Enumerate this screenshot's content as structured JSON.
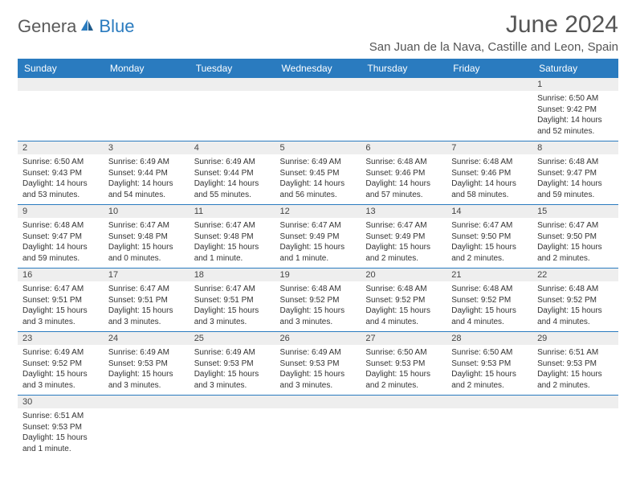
{
  "logo": {
    "part1": "Genera",
    "part2": "Blue"
  },
  "title": "June 2024",
  "location": "San Juan de la Nava, Castille and Leon, Spain",
  "columns": [
    "Sunday",
    "Monday",
    "Tuesday",
    "Wednesday",
    "Thursday",
    "Friday",
    "Saturday"
  ],
  "style": {
    "header_bg": "#2a7bbf",
    "header_fg": "#ffffff",
    "daynum_bg": "#eeeeee",
    "row_border": "#2a7bbf",
    "body_fontsize": 10,
    "header_fontsize": 12,
    "title_fontsize": 30,
    "location_fontsize": 15
  },
  "weeks": [
    [
      null,
      null,
      null,
      null,
      null,
      null,
      {
        "n": "1",
        "sr": "Sunrise: 6:50 AM",
        "ss": "Sunset: 9:42 PM",
        "d1": "Daylight: 14 hours",
        "d2": "and 52 minutes."
      }
    ],
    [
      {
        "n": "2",
        "sr": "Sunrise: 6:50 AM",
        "ss": "Sunset: 9:43 PM",
        "d1": "Daylight: 14 hours",
        "d2": "and 53 minutes."
      },
      {
        "n": "3",
        "sr": "Sunrise: 6:49 AM",
        "ss": "Sunset: 9:44 PM",
        "d1": "Daylight: 14 hours",
        "d2": "and 54 minutes."
      },
      {
        "n": "4",
        "sr": "Sunrise: 6:49 AM",
        "ss": "Sunset: 9:44 PM",
        "d1": "Daylight: 14 hours",
        "d2": "and 55 minutes."
      },
      {
        "n": "5",
        "sr": "Sunrise: 6:49 AM",
        "ss": "Sunset: 9:45 PM",
        "d1": "Daylight: 14 hours",
        "d2": "and 56 minutes."
      },
      {
        "n": "6",
        "sr": "Sunrise: 6:48 AM",
        "ss": "Sunset: 9:46 PM",
        "d1": "Daylight: 14 hours",
        "d2": "and 57 minutes."
      },
      {
        "n": "7",
        "sr": "Sunrise: 6:48 AM",
        "ss": "Sunset: 9:46 PM",
        "d1": "Daylight: 14 hours",
        "d2": "and 58 minutes."
      },
      {
        "n": "8",
        "sr": "Sunrise: 6:48 AM",
        "ss": "Sunset: 9:47 PM",
        "d1": "Daylight: 14 hours",
        "d2": "and 59 minutes."
      }
    ],
    [
      {
        "n": "9",
        "sr": "Sunrise: 6:48 AM",
        "ss": "Sunset: 9:47 PM",
        "d1": "Daylight: 14 hours",
        "d2": "and 59 minutes."
      },
      {
        "n": "10",
        "sr": "Sunrise: 6:47 AM",
        "ss": "Sunset: 9:48 PM",
        "d1": "Daylight: 15 hours",
        "d2": "and 0 minutes."
      },
      {
        "n": "11",
        "sr": "Sunrise: 6:47 AM",
        "ss": "Sunset: 9:48 PM",
        "d1": "Daylight: 15 hours",
        "d2": "and 1 minute."
      },
      {
        "n": "12",
        "sr": "Sunrise: 6:47 AM",
        "ss": "Sunset: 9:49 PM",
        "d1": "Daylight: 15 hours",
        "d2": "and 1 minute."
      },
      {
        "n": "13",
        "sr": "Sunrise: 6:47 AM",
        "ss": "Sunset: 9:49 PM",
        "d1": "Daylight: 15 hours",
        "d2": "and 2 minutes."
      },
      {
        "n": "14",
        "sr": "Sunrise: 6:47 AM",
        "ss": "Sunset: 9:50 PM",
        "d1": "Daylight: 15 hours",
        "d2": "and 2 minutes."
      },
      {
        "n": "15",
        "sr": "Sunrise: 6:47 AM",
        "ss": "Sunset: 9:50 PM",
        "d1": "Daylight: 15 hours",
        "d2": "and 2 minutes."
      }
    ],
    [
      {
        "n": "16",
        "sr": "Sunrise: 6:47 AM",
        "ss": "Sunset: 9:51 PM",
        "d1": "Daylight: 15 hours",
        "d2": "and 3 minutes."
      },
      {
        "n": "17",
        "sr": "Sunrise: 6:47 AM",
        "ss": "Sunset: 9:51 PM",
        "d1": "Daylight: 15 hours",
        "d2": "and 3 minutes."
      },
      {
        "n": "18",
        "sr": "Sunrise: 6:47 AM",
        "ss": "Sunset: 9:51 PM",
        "d1": "Daylight: 15 hours",
        "d2": "and 3 minutes."
      },
      {
        "n": "19",
        "sr": "Sunrise: 6:48 AM",
        "ss": "Sunset: 9:52 PM",
        "d1": "Daylight: 15 hours",
        "d2": "and 3 minutes."
      },
      {
        "n": "20",
        "sr": "Sunrise: 6:48 AM",
        "ss": "Sunset: 9:52 PM",
        "d1": "Daylight: 15 hours",
        "d2": "and 4 minutes."
      },
      {
        "n": "21",
        "sr": "Sunrise: 6:48 AM",
        "ss": "Sunset: 9:52 PM",
        "d1": "Daylight: 15 hours",
        "d2": "and 4 minutes."
      },
      {
        "n": "22",
        "sr": "Sunrise: 6:48 AM",
        "ss": "Sunset: 9:52 PM",
        "d1": "Daylight: 15 hours",
        "d2": "and 4 minutes."
      }
    ],
    [
      {
        "n": "23",
        "sr": "Sunrise: 6:49 AM",
        "ss": "Sunset: 9:52 PM",
        "d1": "Daylight: 15 hours",
        "d2": "and 3 minutes."
      },
      {
        "n": "24",
        "sr": "Sunrise: 6:49 AM",
        "ss": "Sunset: 9:53 PM",
        "d1": "Daylight: 15 hours",
        "d2": "and 3 minutes."
      },
      {
        "n": "25",
        "sr": "Sunrise: 6:49 AM",
        "ss": "Sunset: 9:53 PM",
        "d1": "Daylight: 15 hours",
        "d2": "and 3 minutes."
      },
      {
        "n": "26",
        "sr": "Sunrise: 6:49 AM",
        "ss": "Sunset: 9:53 PM",
        "d1": "Daylight: 15 hours",
        "d2": "and 3 minutes."
      },
      {
        "n": "27",
        "sr": "Sunrise: 6:50 AM",
        "ss": "Sunset: 9:53 PM",
        "d1": "Daylight: 15 hours",
        "d2": "and 2 minutes."
      },
      {
        "n": "28",
        "sr": "Sunrise: 6:50 AM",
        "ss": "Sunset: 9:53 PM",
        "d1": "Daylight: 15 hours",
        "d2": "and 2 minutes."
      },
      {
        "n": "29",
        "sr": "Sunrise: 6:51 AM",
        "ss": "Sunset: 9:53 PM",
        "d1": "Daylight: 15 hours",
        "d2": "and 2 minutes."
      }
    ],
    [
      {
        "n": "30",
        "sr": "Sunrise: 6:51 AM",
        "ss": "Sunset: 9:53 PM",
        "d1": "Daylight: 15 hours",
        "d2": "and 1 minute."
      },
      null,
      null,
      null,
      null,
      null,
      null
    ]
  ]
}
